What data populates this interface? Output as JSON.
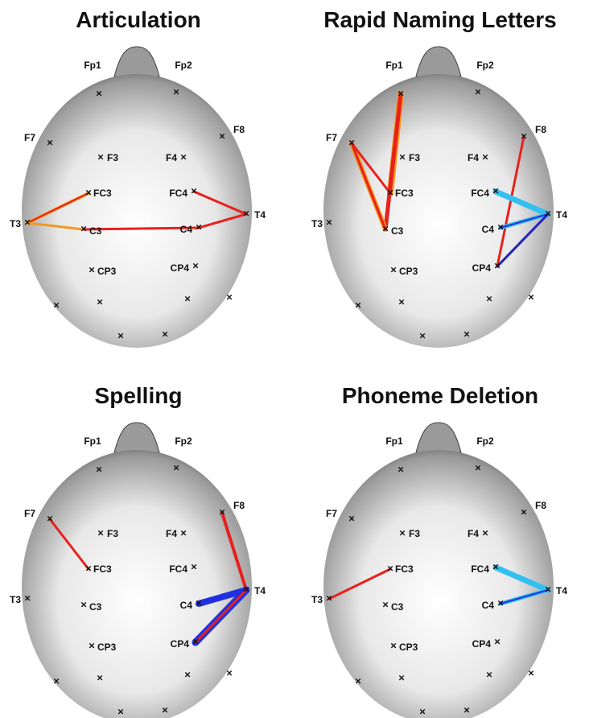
{
  "panels": [
    {
      "title": "Articulation",
      "electrodes": [
        "Fp1",
        "Fp2",
        "F7",
        "F8",
        "F3",
        "F4",
        "FC3",
        "FC4",
        "T3",
        "T4",
        "C3",
        "C4",
        "CP3",
        "CP4"
      ]
    },
    {
      "title": "Rapid Naming Letters",
      "electrodes": [
        "Fp1",
        "Fp2",
        "F7",
        "F8",
        "F3",
        "F4",
        "FC3",
        "FC4",
        "T3",
        "T4",
        "C3",
        "C4",
        "CP3",
        "CP4"
      ]
    },
    {
      "title": "Spelling",
      "electrodes": [
        "Fp1",
        "Fp2",
        "F7",
        "F8",
        "F3",
        "F4",
        "FC3",
        "FC4",
        "T3",
        "T4",
        "C3",
        "C4",
        "CP3",
        "CP4"
      ]
    },
    {
      "title": "Phoneme Deletion",
      "electrodes": [
        "Fp1",
        "Fp2",
        "F7",
        "F8",
        "F3",
        "F4",
        "FC3",
        "FC4",
        "T3",
        "T4",
        "C3",
        "C4",
        "CP3",
        "CP4"
      ]
    }
  ]
}
